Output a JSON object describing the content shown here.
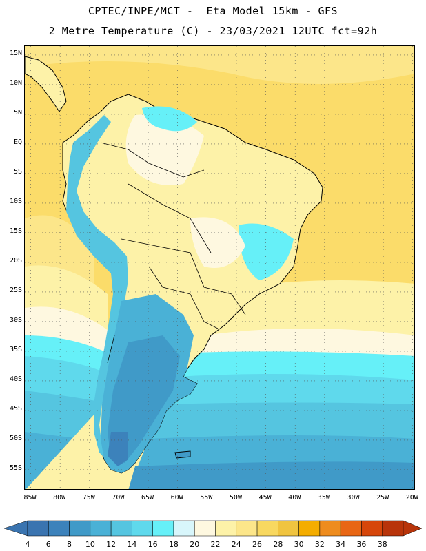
{
  "header": {
    "title_line1": "CPTEC/INPE/MCT -  Eta Model 15km - GFS",
    "title_line2": "2 Metre Temperature (C) - 23/03/2021 12UTC fct=92h"
  },
  "map": {
    "lat_labels": [
      "15N",
      "10N",
      "5N",
      "EQ",
      "5S",
      "10S",
      "15S",
      "20S",
      "25S",
      "30S",
      "35S",
      "40S",
      "45S",
      "50S",
      "55S"
    ],
    "lon_labels": [
      "85W",
      "80W",
      "75W",
      "70W",
      "65W",
      "60W",
      "55W",
      "50W",
      "45W",
      "40W",
      "35W",
      "30W",
      "25W",
      "20W"
    ],
    "lat_values": [
      15,
      10,
      5,
      0,
      -5,
      -10,
      -15,
      -20,
      -25,
      -30,
      -35,
      -40,
      -45,
      -50,
      -55
    ],
    "lon_values": [
      -85,
      -80,
      -75,
      -70,
      -65,
      -60,
      -55,
      -50,
      -45,
      -40,
      -35,
      -30,
      -25,
      -20
    ],
    "extent": {
      "lon_min": -86,
      "lon_max": -19.5,
      "lat_min": -58.5,
      "lat_max": 16.5
    }
  },
  "colorbar": {
    "levels": [
      "4",
      "6",
      "8",
      "10",
      "12",
      "14",
      "16",
      "18",
      "20",
      "22",
      "24",
      "26",
      "28",
      "30",
      "32",
      "34",
      "36",
      "38"
    ],
    "colors": [
      "#3a74b0",
      "#3c82bb",
      "#409ac8",
      "#4ab1d6",
      "#55c5e0",
      "#5fd9ec",
      "#66f0f8",
      "#d8f6fb",
      "#fef8e0",
      "#fdf2a8",
      "#fce68a",
      "#f8d860",
      "#f0c440",
      "#f4ad00",
      "#ee8c1e",
      "#e86614",
      "#d6460a",
      "#b8340a"
    ]
  }
}
